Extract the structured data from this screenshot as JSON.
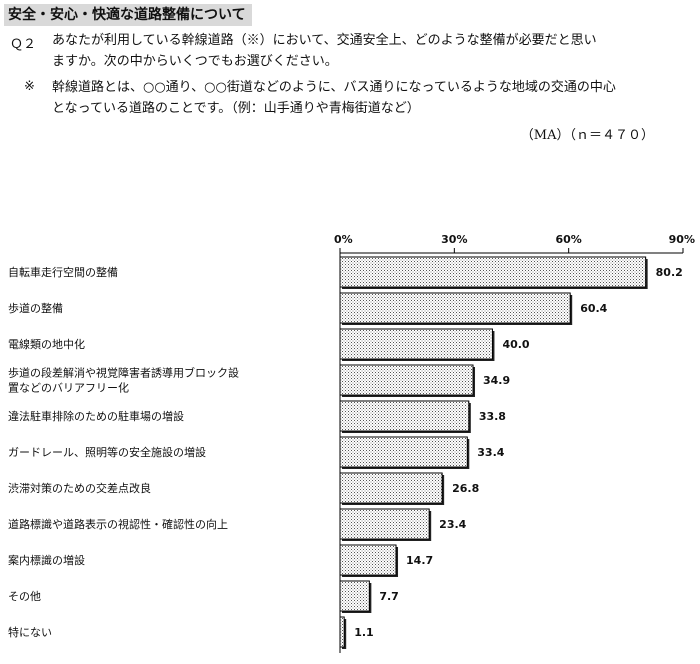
{
  "header": {
    "section_title": "安全・安心・快適な道路整備について",
    "q_number": "Ｑ２",
    "question_lines": [
      "あなたが利用している幹線道路（※）において、交通安全上、どのような整備が必要だと思い",
      "ますか。次の中からいくつでもお選びください。"
    ],
    "note_mark": "※",
    "note_lines": [
      "幹線道路とは、○○通り、○○街道などのように、バス通りになっているような地域の交通の中心",
      "となっている道路のことです。（例：山手通りや青梅街道など）"
    ],
    "ma_label": "（MA）（ｎ＝４７０）"
  },
  "chart_data": {
    "type": "bar",
    "orientation": "horizontal",
    "categories": [
      [
        "自転車走行空間の整備"
      ],
      [
        "歩道の整備"
      ],
      [
        "電線類の地中化"
      ],
      [
        "歩道の段差解消や視覚障害者誘導用ブロック設",
        "置などのバリアフリー化"
      ],
      [
        "違法駐車排除のための駐車場の増設"
      ],
      [
        "ガードレール、照明等の安全施設の増設"
      ],
      [
        "渋滞対策のための交差点改良"
      ],
      [
        "道路標識や道路表示の視認性・確認性の向上"
      ],
      [
        "案内標識の増設"
      ],
      [
        "その他"
      ],
      [
        "特にない"
      ]
    ],
    "values": [
      80.2,
      60.4,
      40.0,
      34.9,
      33.8,
      33.4,
      26.8,
      23.4,
      14.7,
      7.7,
      1.1
    ],
    "value_labels": [
      "80.2",
      "60.4",
      "40.0",
      "34.9",
      "33.8",
      "33.4",
      "26.8",
      "23.4",
      "14.7",
      "7.7",
      "1.1"
    ],
    "xlim": [
      0,
      90
    ],
    "x_ticks": [
      0,
      30,
      60,
      90
    ],
    "x_tick_labels": [
      "0%",
      "30%",
      "60%",
      "90%"
    ],
    "grid": false,
    "bar_fill": "dotted pattern"
  }
}
